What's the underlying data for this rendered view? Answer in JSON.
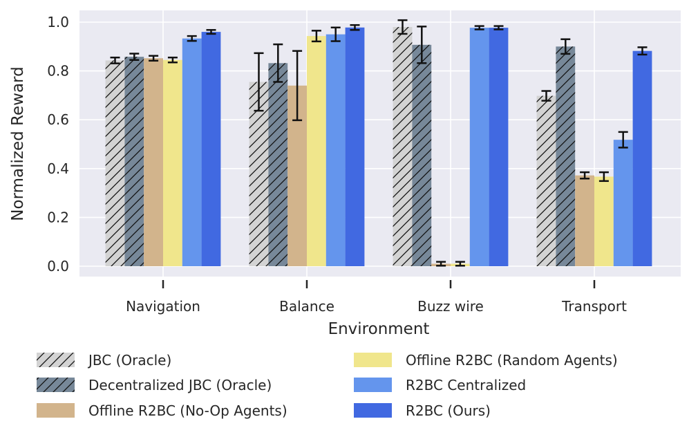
{
  "chart_data": {
    "type": "bar",
    "xlabel": "Environment",
    "ylabel": "Normalized Reward",
    "ylim": [
      0,
      1.04
    ],
    "yticks": [
      "0.0",
      "0.2",
      "0.4",
      "0.6",
      "0.8",
      "1.0"
    ],
    "grid": true,
    "legend_position": "bottom",
    "categories": [
      "Navigation",
      "Balance",
      "Buzz wire",
      "Transport"
    ],
    "series": [
      {
        "name": "JBC (Oracle)",
        "color": "#d3d3d3",
        "hatch": true,
        "values": [
          0.843,
          0.755,
          0.98,
          0.698
        ],
        "errors": [
          0.012,
          0.118,
          0.028,
          0.02
        ]
      },
      {
        "name": "Decentralized JBC (Oracle)",
        "color": "#778899",
        "hatch": true,
        "values": [
          0.858,
          0.832,
          0.907,
          0.9
        ],
        "errors": [
          0.013,
          0.077,
          0.075,
          0.03
        ]
      },
      {
        "name": "Offline R2BC (No-Op Agents)",
        "color": "#d2b48c",
        "hatch": false,
        "values": [
          0.852,
          0.74,
          0.01,
          0.372
        ],
        "errors": [
          0.01,
          0.142,
          0.008,
          0.013
        ]
      },
      {
        "name": "Offline R2BC (Random Agents)",
        "color": "#f0e68c",
        "hatch": false,
        "values": [
          0.845,
          0.943,
          0.01,
          0.367
        ],
        "errors": [
          0.01,
          0.022,
          0.008,
          0.018
        ]
      },
      {
        "name": "R2BC Centralized",
        "color": "#6495ed",
        "hatch": false,
        "values": [
          0.933,
          0.95,
          0.977,
          0.518
        ],
        "errors": [
          0.01,
          0.028,
          0.007,
          0.032
        ]
      },
      {
        "name": "R2BC (Ours)",
        "color": "#4169e1",
        "hatch": false,
        "values": [
          0.96,
          0.978,
          0.977,
          0.882
        ],
        "errors": [
          0.008,
          0.01,
          0.007,
          0.015
        ]
      }
    ]
  }
}
